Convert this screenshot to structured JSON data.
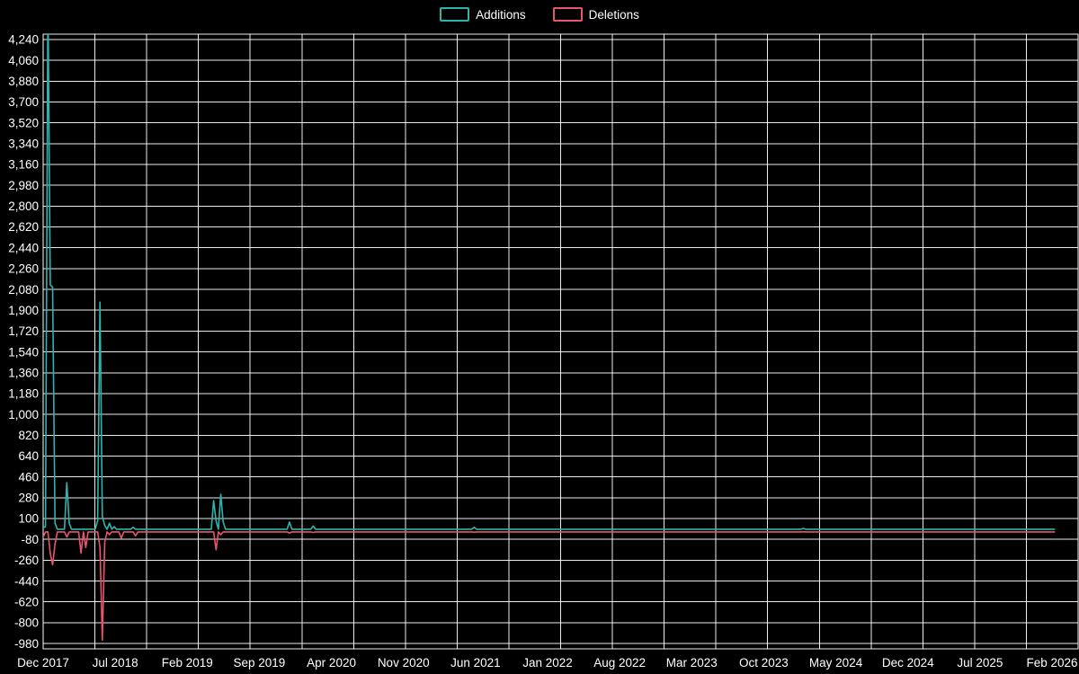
{
  "legend": {
    "items": [
      {
        "label": "Additions",
        "color": "#2fb4ad"
      },
      {
        "label": "Deletions",
        "color": "#e9556d"
      }
    ]
  },
  "chart_data": {
    "type": "line",
    "title": "",
    "background": "#000000",
    "grid_color": "#ffffff",
    "text_color": "#ffffff",
    "legend_position": "top-center",
    "grid": true,
    "x_unit": "weeks since Dec 2017",
    "x_tick_labels": [
      "Dec 2017",
      "Jul 2018",
      "Feb 2019",
      "Sep 2019",
      "Apr 2020",
      "Nov 2020",
      "Jun 2021",
      "Jan 2022",
      "Aug 2022",
      "Mar 2023",
      "Oct 2023",
      "May 2024",
      "Dec 2024",
      "Jul 2025",
      "Feb 2026"
    ],
    "x_tick_interval_months": 7,
    "weeks_per_month": 4.3469,
    "x_domain_weeks": [
      0,
      437
    ],
    "total_weeks": 428,
    "vertical_gridlines": 21,
    "y_ticks": [
      4240,
      4060,
      3880,
      3700,
      3520,
      3340,
      3160,
      2980,
      2800,
      2620,
      2440,
      2260,
      2080,
      1900,
      1720,
      1540,
      1360,
      1180,
      1000,
      820,
      640,
      460,
      280,
      100,
      -80,
      -260,
      -440,
      -620,
      -800,
      -980
    ],
    "y_tick_step": 180,
    "y_domain": [
      -1026,
      4286
    ],
    "series": [
      {
        "name": "Additions",
        "color": "#2fb4ad",
        "default": 8,
        "points": [
          [
            0,
            20
          ],
          [
            1,
            30
          ],
          [
            2,
            4600
          ],
          [
            3,
            2120
          ],
          [
            4,
            2100
          ],
          [
            5,
            60
          ],
          [
            10,
            410
          ],
          [
            11,
            60
          ],
          [
            23,
            80
          ],
          [
            24,
            1970
          ],
          [
            25,
            120
          ],
          [
            26,
            40
          ],
          [
            28,
            60
          ],
          [
            30,
            30
          ],
          [
            38,
            25
          ],
          [
            72,
            255
          ],
          [
            73,
            80
          ],
          [
            75,
            310
          ],
          [
            76,
            70
          ],
          [
            104,
            70
          ],
          [
            114,
            35
          ],
          [
            182,
            25
          ],
          [
            321,
            15
          ]
        ]
      },
      {
        "name": "Deletions",
        "color": "#e9556d",
        "default": -16,
        "points": [
          [
            0,
            -60
          ],
          [
            3,
            -200
          ],
          [
            4,
            -300
          ],
          [
            5,
            -120
          ],
          [
            10,
            -60
          ],
          [
            16,
            -200
          ],
          [
            18,
            -150
          ],
          [
            24,
            -150
          ],
          [
            25,
            -950
          ],
          [
            26,
            -100
          ],
          [
            28,
            -40
          ],
          [
            33,
            -70
          ],
          [
            39,
            -50
          ],
          [
            73,
            -170
          ],
          [
            75,
            -40
          ],
          [
            104,
            -25
          ],
          [
            114,
            -20
          ],
          [
            182,
            -18
          ],
          [
            321,
            -14
          ]
        ]
      }
    ]
  }
}
